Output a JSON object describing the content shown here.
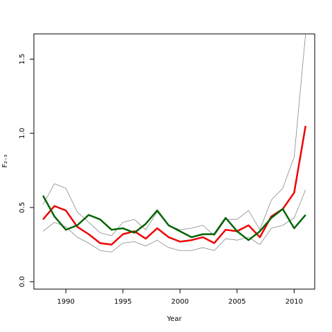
{
  "chart_data": {
    "type": "line",
    "title": "",
    "xlabel": "Year",
    "ylabel": "F₂₋₃",
    "xlim": [
      1987.2,
      2011.8
    ],
    "ylim": [
      -0.05,
      1.67
    ],
    "x_ticks": [
      1990,
      1995,
      2000,
      2005,
      2010
    ],
    "x_tick_labels": [
      "1990",
      "1995",
      "2000",
      "2005",
      "2010"
    ],
    "y_ticks": [
      0.0,
      0.5,
      1.0,
      1.5
    ],
    "y_tick_labels": [
      "0.0",
      "0.5",
      "1.0",
      "1.5"
    ],
    "grid": false,
    "legend": "none",
    "x": [
      1988,
      1989,
      1990,
      1991,
      1992,
      1993,
      1994,
      1995,
      1996,
      1997,
      1998,
      1999,
      2000,
      2001,
      2002,
      2003,
      2004,
      2005,
      2006,
      2007,
      2008,
      2009,
      2010,
      2011
    ],
    "series": [
      {
        "role": "band-upper",
        "color": "#888888",
        "width": 0.8,
        "values": [
          0.52,
          0.66,
          0.63,
          0.47,
          0.4,
          0.33,
          0.31,
          0.4,
          0.42,
          0.35,
          0.47,
          0.38,
          0.35,
          0.36,
          0.38,
          0.31,
          0.42,
          0.42,
          0.48,
          0.35,
          0.55,
          0.63,
          0.84,
          1.67
        ]
      },
      {
        "role": "band-lower",
        "color": "#888888",
        "width": 0.8,
        "values": [
          0.34,
          0.4,
          0.37,
          0.3,
          0.26,
          0.21,
          0.2,
          0.26,
          0.27,
          0.24,
          0.28,
          0.23,
          0.21,
          0.21,
          0.23,
          0.21,
          0.29,
          0.28,
          0.3,
          0.25,
          0.36,
          0.38,
          0.43,
          0.62
        ]
      },
      {
        "role": "estimate-red",
        "color": "#ee0000",
        "width": 2.5,
        "values": [
          0.42,
          0.51,
          0.48,
          0.37,
          0.32,
          0.26,
          0.25,
          0.32,
          0.34,
          0.29,
          0.36,
          0.3,
          0.27,
          0.28,
          0.3,
          0.26,
          0.35,
          0.34,
          0.38,
          0.3,
          0.44,
          0.49,
          0.6,
          1.05
        ]
      },
      {
        "role": "estimate-green",
        "color": "#006400",
        "width": 2.5,
        "values": [
          0.58,
          0.44,
          0.35,
          0.38,
          0.45,
          0.42,
          0.35,
          0.36,
          0.33,
          0.39,
          0.48,
          0.38,
          0.34,
          0.3,
          0.32,
          0.32,
          0.43,
          0.34,
          0.28,
          0.34,
          0.43,
          0.49,
          0.36,
          0.45
        ]
      }
    ]
  }
}
